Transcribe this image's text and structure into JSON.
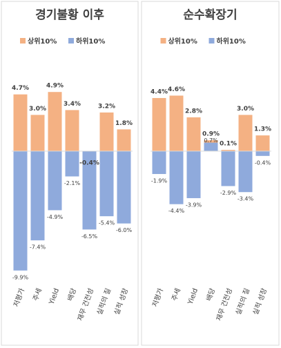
{
  "chart_data": [
    {
      "type": "bar",
      "title": "경기불황 이후",
      "categories": [
        "저평가",
        "주세",
        "Yield",
        "배당",
        "재무 건전성",
        "실적의 질",
        "실적 성장"
      ],
      "series": [
        {
          "name": "상위10%",
          "color": "#f4b183",
          "values": [
            4.7,
            3.0,
            4.9,
            3.4,
            -0.4,
            3.2,
            1.8
          ],
          "value_labels": [
            "4.7%",
            "3.0%",
            "4.9%",
            "3.4%",
            "-0.4%",
            "3.2%",
            "1.8%"
          ]
        },
        {
          "name": "하위10%",
          "color": "#8faadc",
          "values": [
            -9.9,
            -7.4,
            -4.9,
            -2.1,
            -6.5,
            -5.4,
            -6.0
          ],
          "value_labels": [
            "-9.9%",
            "-7.4%",
            "-4.9%",
            "-2.1%",
            "-6.5%",
            "-5.4%",
            "-6.0%"
          ]
        }
      ],
      "ylim": [
        -11,
        6
      ]
    },
    {
      "type": "bar",
      "title": "순수확장기",
      "categories": [
        "저평가",
        "주세",
        "Yield",
        "배당",
        "재무 건전성",
        "실적의 질",
        "실적 성장"
      ],
      "series": [
        {
          "name": "상위10%",
          "color": "#f4b183",
          "values": [
            4.4,
            4.6,
            2.8,
            0.9,
            0.1,
            3.0,
            1.3
          ],
          "value_labels": [
            "4.4%",
            "4.6%",
            "2.8%",
            "0.9%",
            "0.1%",
            "3.0%",
            "1.3%"
          ]
        },
        {
          "name": "하위10%",
          "color": "#8faadc",
          "values": [
            -1.9,
            -4.4,
            -3.9,
            0.7,
            -2.9,
            -3.4,
            -0.4
          ],
          "value_labels": [
            "-1.9%",
            "-4.4%",
            "-3.9%",
            "0.7%",
            "-2.9%",
            "-3.4%",
            "-0.4%"
          ]
        }
      ],
      "ylim": [
        -11,
        6
      ]
    }
  ]
}
